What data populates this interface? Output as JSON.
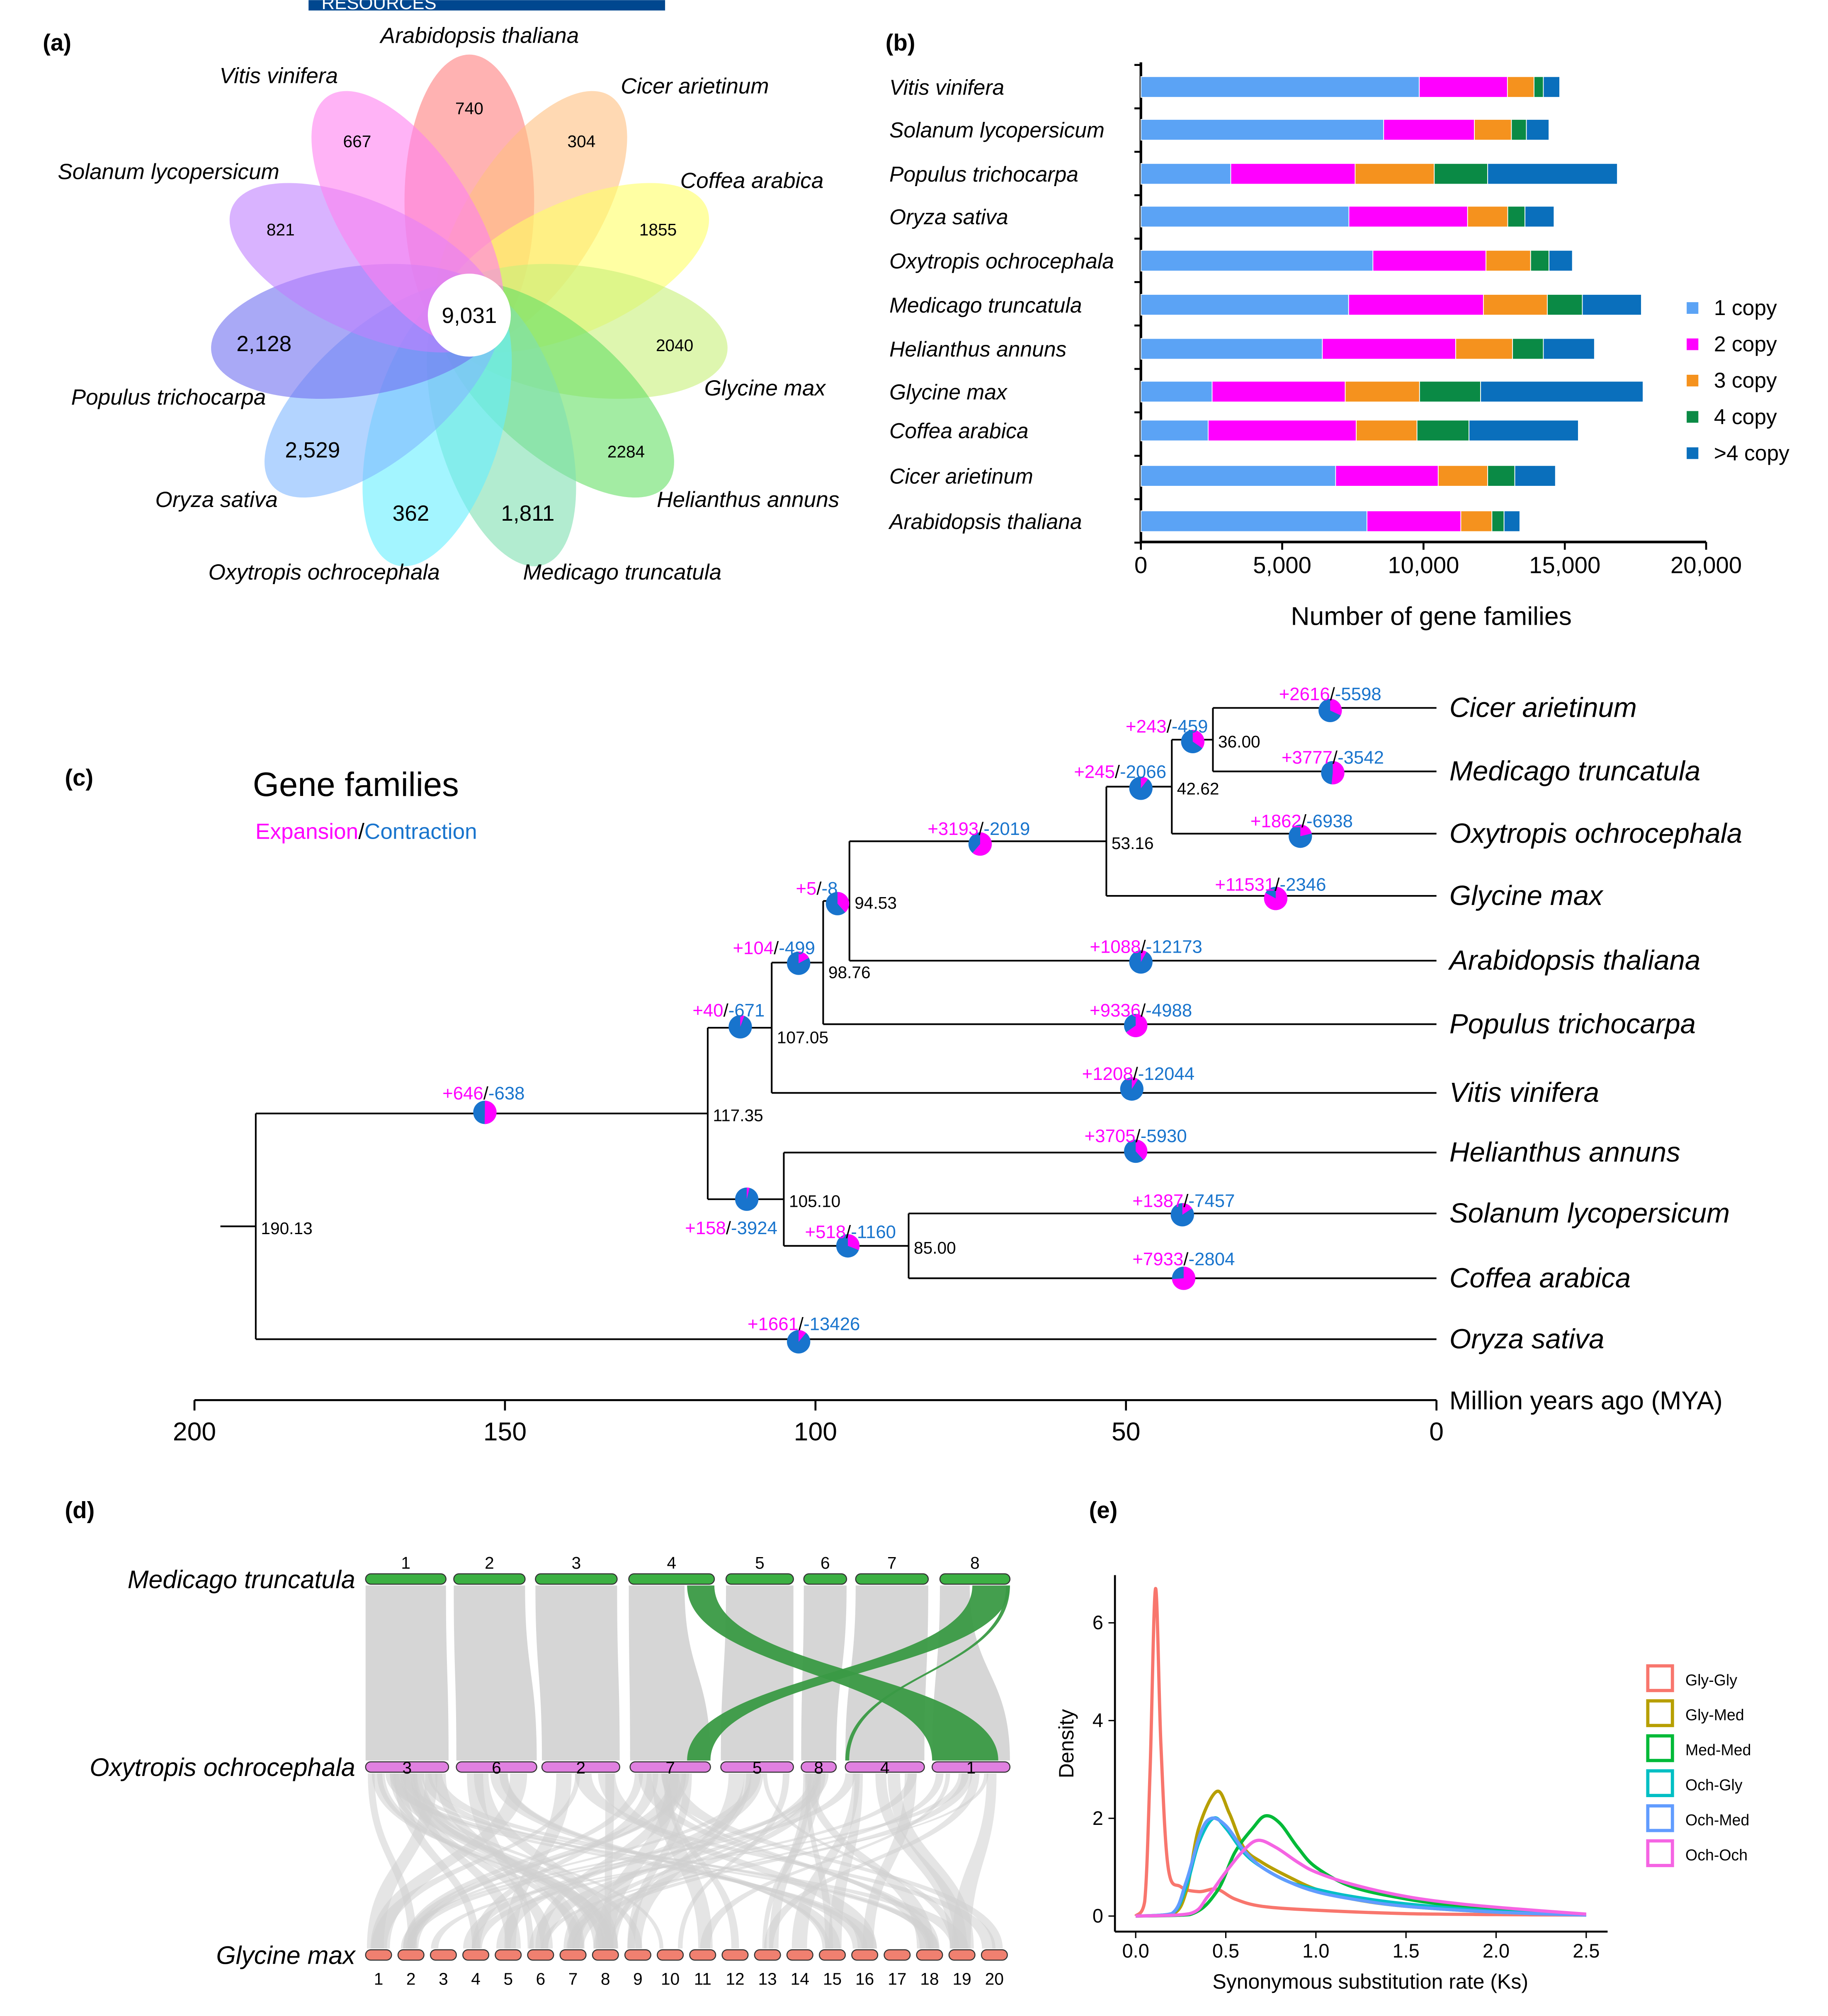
{
  "banner": {
    "text": "RESOURCES",
    "color": "#00478f"
  },
  "panel_labels": {
    "a": "(a)",
    "b": "(b)",
    "c": "(c)",
    "d": "(d)",
    "e": "(e)"
  },
  "panel_a": {
    "center_value": "9,031",
    "petals": [
      {
        "species": "Arabidopsis thaliana",
        "value": "740",
        "color": "#ff7f7f"
      },
      {
        "species": "Cicer arietinum",
        "value": "304",
        "color": "#ffc080"
      },
      {
        "species": "Coffea arabica",
        "value": "1855",
        "color": "#ffff66"
      },
      {
        "species": "Glycine max",
        "value": "2040",
        "color": "#c8f07a"
      },
      {
        "species": "Helianthus annuns",
        "value": "2284",
        "color": "#66e066"
      },
      {
        "species": "Medicago truncatula",
        "value": "1,811",
        "color": "#7ee0b0"
      },
      {
        "species": "Oxytropis ochrocephala",
        "value": "362",
        "color": "#66eeff"
      },
      {
        "species": "Oryza sativa",
        "value": "2,529",
        "color": "#80b8ff"
      },
      {
        "species": "Populus trichocarpa",
        "value": "2,128",
        "color": "#7070f0"
      },
      {
        "species": "Solanum lycopersicum",
        "value": "821",
        "color": "#c080ff"
      },
      {
        "species": "Vitis vinifera",
        "value": "667",
        "color": "#ff80f0"
      }
    ]
  },
  "chart_data": [
    {
      "type": "bar",
      "orientation": "horizontal-stacked",
      "categories": [
        "Vitis vinifera",
        "Solanum lycopersicum",
        "Populus trichocarpa",
        "Oryza sativa",
        "Oxytropis ochrocephala",
        "Medicago truncatula",
        "Helianthus annuns",
        "Glycine max",
        "Coffea arabica",
        "Cicer arietinum",
        "Arabidopsis thaliana"
      ],
      "series": [
        {
          "name": "1 copy",
          "color": "#5ba3f5",
          "values": [
            9850,
            8590,
            3180,
            7360,
            8210,
            7350,
            6420,
            2520,
            2380,
            6890,
            8000
          ]
        },
        {
          "name": "2 copy",
          "color": "#ff00ff",
          "values": [
            3120,
            3210,
            4400,
            4200,
            4000,
            4770,
            4720,
            4710,
            5240,
            3630,
            3320
          ]
        },
        {
          "name": "3 copy",
          "color": "#f5921e",
          "values": [
            940,
            1310,
            2800,
            1420,
            1580,
            2260,
            2010,
            2630,
            2150,
            1750,
            1100
          ]
        },
        {
          "name": "4 copy",
          "color": "#0a8a45",
          "values": [
            330,
            530,
            1890,
            610,
            650,
            1240,
            1090,
            2160,
            1840,
            960,
            430
          ]
        },
        {
          "name": ">4 copy",
          "color": "#0a6fbc",
          "values": [
            580,
            800,
            4590,
            1030,
            830,
            2090,
            1810,
            5750,
            3870,
            1440,
            560
          ]
        }
      ],
      "xlabel": "Number of gene families",
      "xlim": [
        0,
        20000
      ],
      "xticks": [
        "0",
        "5,000",
        "10,000",
        "15,000",
        "20,000"
      ],
      "legend": "right"
    },
    {
      "type": "line",
      "xlabel": "Synonymous substitution rate (Ks)",
      "ylabel": "Density",
      "xlim": [
        0,
        2.5
      ],
      "ylim": [
        0,
        7
      ],
      "xticks": [
        "0.0",
        "0.5",
        "1.0",
        "1.5",
        "2.0",
        "2.5"
      ],
      "yticks": [
        "0",
        "2",
        "4",
        "6"
      ],
      "legend": "right",
      "series": [
        {
          "name": "Gly-Gly",
          "color": "#f8766d",
          "points": [
            [
              0,
              0
            ],
            [
              0.05,
              0.3
            ],
            [
              0.08,
              3
            ],
            [
              0.11,
              6.7
            ],
            [
              0.14,
              3.5
            ],
            [
              0.18,
              1.0
            ],
            [
              0.25,
              0.6
            ],
            [
              0.35,
              0.5
            ],
            [
              0.45,
              0.55
            ],
            [
              0.55,
              0.35
            ],
            [
              0.7,
              0.2
            ],
            [
              1.0,
              0.12
            ],
            [
              1.5,
              0.05
            ],
            [
              2.0,
              0.03
            ],
            [
              2.5,
              0.02
            ]
          ]
        },
        {
          "name": "Gly-Med",
          "color": "#b79f00",
          "points": [
            [
              0,
              0
            ],
            [
              0.2,
              0.03
            ],
            [
              0.28,
              0.5
            ],
            [
              0.35,
              1.8
            ],
            [
              0.45,
              2.55
            ],
            [
              0.52,
              2.1
            ],
            [
              0.6,
              1.4
            ],
            [
              0.7,
              1.1
            ],
            [
              0.85,
              0.8
            ],
            [
              1.0,
              0.55
            ],
            [
              1.2,
              0.35
            ],
            [
              1.5,
              0.2
            ],
            [
              2.0,
              0.08
            ],
            [
              2.5,
              0.03
            ]
          ]
        },
        {
          "name": "Med-Med",
          "color": "#00ba38",
          "points": [
            [
              0,
              0
            ],
            [
              0.3,
              0.03
            ],
            [
              0.45,
              0.5
            ],
            [
              0.55,
              1.3
            ],
            [
              0.65,
              1.8
            ],
            [
              0.72,
              2.05
            ],
            [
              0.8,
              1.9
            ],
            [
              0.9,
              1.4
            ],
            [
              1.0,
              1.0
            ],
            [
              1.2,
              0.6
            ],
            [
              1.5,
              0.35
            ],
            [
              1.8,
              0.2
            ],
            [
              2.1,
              0.1
            ],
            [
              2.5,
              0.03
            ]
          ]
        },
        {
          "name": "Och-Gly",
          "color": "#00bfc4",
          "points": [
            [
              0,
              0
            ],
            [
              0.2,
              0.05
            ],
            [
              0.28,
              0.6
            ],
            [
              0.35,
              1.5
            ],
            [
              0.43,
              2.0
            ],
            [
              0.5,
              1.8
            ],
            [
              0.6,
              1.3
            ],
            [
              0.7,
              1.0
            ],
            [
              0.85,
              0.7
            ],
            [
              1.0,
              0.55
            ],
            [
              1.2,
              0.4
            ],
            [
              1.5,
              0.25
            ],
            [
              2.0,
              0.1
            ],
            [
              2.5,
              0.03
            ]
          ]
        },
        {
          "name": "Och-Med",
          "color": "#619cff",
          "points": [
            [
              0,
              0
            ],
            [
              0.2,
              0.05
            ],
            [
              0.28,
              0.7
            ],
            [
              0.36,
              1.7
            ],
            [
              0.42,
              2.0
            ],
            [
              0.5,
              1.85
            ],
            [
              0.6,
              1.35
            ],
            [
              0.7,
              1.0
            ],
            [
              0.85,
              0.7
            ],
            [
              1.0,
              0.5
            ],
            [
              1.2,
              0.35
            ],
            [
              1.5,
              0.2
            ],
            [
              2.0,
              0.08
            ],
            [
              2.5,
              0.02
            ]
          ]
        },
        {
          "name": "Och-Och",
          "color": "#f564e3",
          "points": [
            [
              0,
              0
            ],
            [
              0.3,
              0.05
            ],
            [
              0.4,
              0.4
            ],
            [
              0.5,
              0.9
            ],
            [
              0.6,
              1.35
            ],
            [
              0.68,
              1.55
            ],
            [
              0.78,
              1.4
            ],
            [
              0.9,
              1.1
            ],
            [
              1.0,
              0.9
            ],
            [
              1.2,
              0.65
            ],
            [
              1.5,
              0.4
            ],
            [
              1.8,
              0.25
            ],
            [
              2.1,
              0.15
            ],
            [
              2.5,
              0.04
            ]
          ]
        }
      ]
    }
  ],
  "panel_c": {
    "title": "Gene families",
    "legend_expansion": "Expansion",
    "legend_sep": "/",
    "legend_contraction": "Contraction",
    "expansion_color": "#ff00ff",
    "contraction_color": "#1874cd",
    "axis_label": "Million years ago (MYA)",
    "axis_ticks": [
      "200",
      "150",
      "100",
      "50",
      "0"
    ],
    "tips": [
      "Cicer arietinum",
      "Medicago truncatula",
      "Oxytropis ochrocephala",
      "Glycine max",
      "Arabidopsis thaliana",
      "Populus trichocarpa",
      "Vitis vinifera",
      "Helianthus annuns",
      "Solanum lycopersicum",
      "Coffea arabica",
      "Oryza sativa"
    ],
    "node_ages": [
      "36.00",
      "42.62",
      "53.16",
      "94.53",
      "98.76",
      "107.05",
      "117.35",
      "105.10",
      "85.00",
      "190.13"
    ],
    "branches": [
      {
        "exp": "+2616",
        "con": "-5598"
      },
      {
        "exp": "+3777",
        "con": "-3542"
      },
      {
        "exp": "+243",
        "con": "-459"
      },
      {
        "exp": "+245",
        "con": "-2066"
      },
      {
        "exp": "+1862",
        "con": "-6938"
      },
      {
        "exp": "+3193",
        "con": "-2019"
      },
      {
        "exp": "+11531",
        "con": "-2346"
      },
      {
        "exp": "+5",
        "con": "-8"
      },
      {
        "exp": "+1088",
        "con": "-12173"
      },
      {
        "exp": "+104",
        "con": "-499"
      },
      {
        "exp": "+9336",
        "con": "-4988"
      },
      {
        "exp": "+40",
        "con": "-671"
      },
      {
        "exp": "+1208",
        "con": "-12044"
      },
      {
        "exp": "+646",
        "con": "-638"
      },
      {
        "exp": "+3705",
        "con": "-5930"
      },
      {
        "exp": "+158",
        "con": "-3924"
      },
      {
        "exp": "+1387",
        "con": "-7457"
      },
      {
        "exp": "+518",
        "con": "-1160"
      },
      {
        "exp": "+7933",
        "con": "-2804"
      },
      {
        "exp": "+1661",
        "con": "-13426"
      }
    ]
  },
  "panel_d": {
    "genomes": [
      {
        "name": "Medicago truncatula",
        "color": "#3cb043",
        "chromosomes": [
          "1",
          "2",
          "3",
          "4",
          "5",
          "6",
          "7",
          "8"
        ]
      },
      {
        "name": "Oxytropis ochrocephala",
        "color": "#e080e0",
        "chromosomes": [
          "3",
          "6",
          "2",
          "7",
          "5",
          "8",
          "4",
          "1"
        ]
      },
      {
        "name": "Glycine max",
        "color": "#f08070",
        "chromosomes": [
          "1",
          "2",
          "3",
          "4",
          "5",
          "6",
          "7",
          "8",
          "9",
          "10",
          "11",
          "12",
          "13",
          "14",
          "15",
          "16",
          "17",
          "18",
          "19",
          "20"
        ]
      }
    ],
    "link_color": "#cfcfcf",
    "highlight_color": "#3a9a45"
  }
}
